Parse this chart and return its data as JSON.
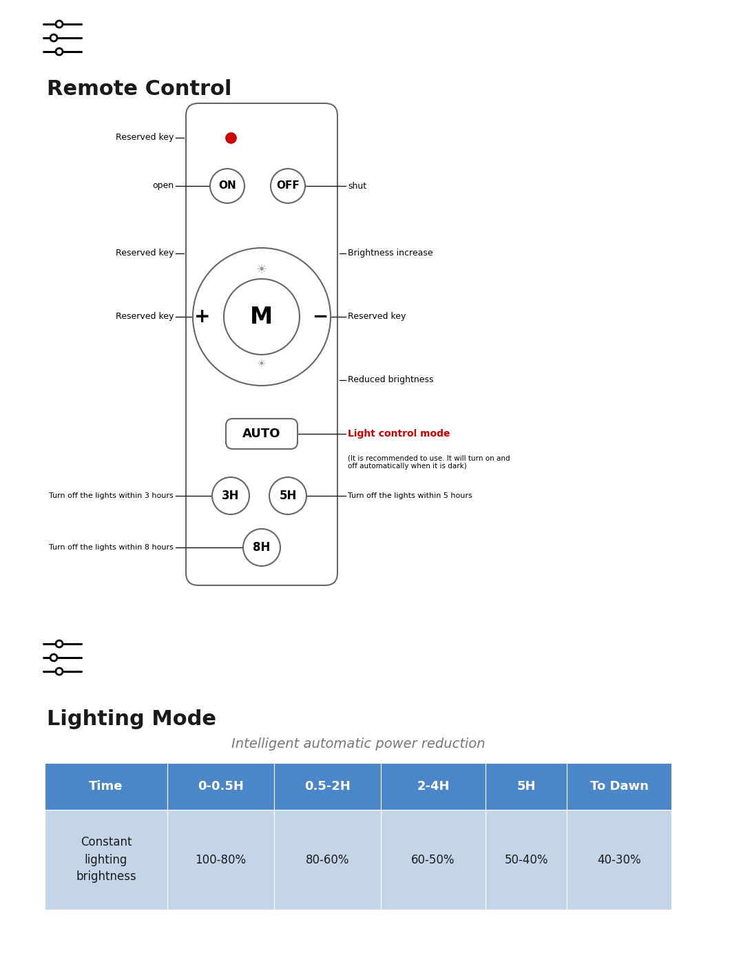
{
  "bg_color": "#ffffff",
  "title_remote": "Remote Control",
  "title_lighting": "Lighting Mode",
  "table_subtitle": "Intelligent automatic power reduction",
  "table_header": [
    "Time",
    "0-0.5H",
    "0.5-2H",
    "2-4H",
    "5H",
    "To Dawn"
  ],
  "table_row_label": "Constant\nlighting\nbrightness",
  "table_row_values": [
    "100-80%",
    "80-60%",
    "60-50%",
    "50-40%",
    "40-30%"
  ],
  "header_bg": "#4a86c8",
  "header_text": "#ffffff",
  "row_bg": "#c5d5e8",
  "row_text": "#1a1a1a",
  "label_color": "#1a1a1a",
  "red_color": "#cc0000",
  "light_control_text": "Light control mode",
  "auto_sub_text": "(It is recommended to use. It will turn on and\noff automatically when it is dark)",
  "icon_circle_offsets": [
    18,
    10,
    18
  ],
  "icon_line_offsets": [
    0,
    20,
    40
  ]
}
